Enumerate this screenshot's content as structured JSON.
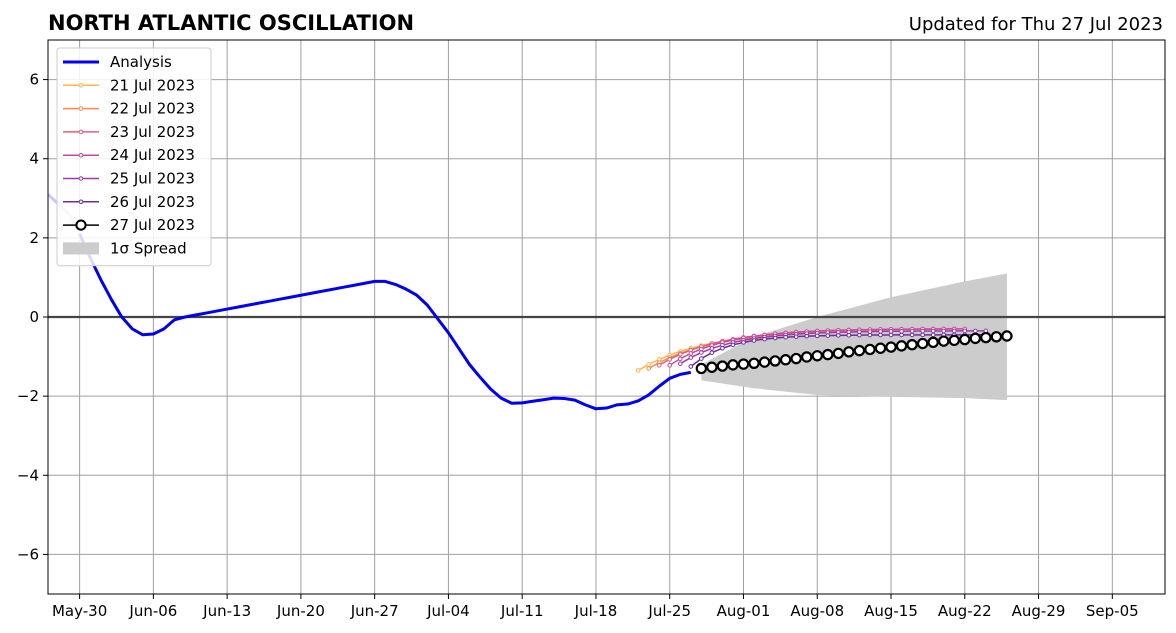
{
  "chart_data": {
    "type": "line",
    "title": "NORTH ATLANTIC OSCILLATION",
    "subtitle": "Updated for Thu 27 Jul 2023",
    "xlabel": "",
    "ylabel": "",
    "xlim": [
      "2023-05-27",
      "2023-09-10"
    ],
    "ylim": [
      -7,
      7
    ],
    "x_ticks": [
      {
        "date": "2023-05-30",
        "label": "May-30"
      },
      {
        "date": "2023-06-06",
        "label": "Jun-06"
      },
      {
        "date": "2023-06-13",
        "label": "Jun-13"
      },
      {
        "date": "2023-06-20",
        "label": "Jun-20"
      },
      {
        "date": "2023-06-27",
        "label": "Jun-27"
      },
      {
        "date": "2023-07-04",
        "label": "Jul-04"
      },
      {
        "date": "2023-07-11",
        "label": "Jul-11"
      },
      {
        "date": "2023-07-18",
        "label": "Jul-18"
      },
      {
        "date": "2023-07-25",
        "label": "Jul-25"
      },
      {
        "date": "2023-08-01",
        "label": "Aug-01"
      },
      {
        "date": "2023-08-08",
        "label": "Aug-08"
      },
      {
        "date": "2023-08-15",
        "label": "Aug-15"
      },
      {
        "date": "2023-08-22",
        "label": "Aug-22"
      },
      {
        "date": "2023-08-29",
        "label": "Aug-29"
      },
      {
        "date": "2023-09-05",
        "label": "Sep-05"
      }
    ],
    "y_ticks": [
      {
        "value": -6,
        "label": "−6"
      },
      {
        "value": -4,
        "label": "−4"
      },
      {
        "value": -2,
        "label": "−2"
      },
      {
        "value": 0,
        "label": "0"
      },
      {
        "value": 2,
        "label": "2"
      },
      {
        "value": 4,
        "label": "4"
      },
      {
        "value": 6,
        "label": "6"
      }
    ],
    "grid": true,
    "legend_position": "top-left",
    "analysis": {
      "name": "Analysis",
      "color": "#0000ee",
      "highlight_color": "#c8c8ff",
      "highlight_until": "2023-05-30",
      "x": [
        "2023-05-28",
        "2023-05-29",
        "2023-05-30",
        "2023-05-31",
        "2023-06-01",
        "2023-06-02",
        "2023-06-03",
        "2023-06-04",
        "2023-06-05",
        "2023-06-06",
        "2023-06-07",
        "2023-06-08",
        "2023-06-09",
        "2023-06-10",
        "2023-06-11",
        "2023-06-12",
        "2023-06-13",
        "2023-06-14",
        "2023-06-15",
        "2023-06-16",
        "2023-06-17",
        "2023-06-18",
        "2023-06-19",
        "2023-06-20",
        "2023-06-21",
        "2023-06-22",
        "2023-06-23",
        "2023-06-24",
        "2023-06-25",
        "2023-06-26",
        "2023-06-27",
        "2023-06-28",
        "2023-06-29",
        "2023-06-30",
        "2023-07-01",
        "2023-07-02",
        "2023-07-03",
        "2023-07-04",
        "2023-07-05",
        "2023-07-06",
        "2023-07-07",
        "2023-07-08",
        "2023-07-09",
        "2023-07-10",
        "2023-07-11",
        "2023-07-12",
        "2023-07-13",
        "2023-07-14",
        "2023-07-15",
        "2023-07-16",
        "2023-07-17",
        "2023-07-18",
        "2023-07-19",
        "2023-07-20",
        "2023-07-21",
        "2023-07-22",
        "2023-07-23",
        "2023-07-24",
        "2023-07-25",
        "2023-07-26",
        "2023-07-27"
      ],
      "y": [
        2.85,
        2.6,
        2.1,
        1.5,
        0.95,
        0.45,
        0.0,
        -0.3,
        -0.45,
        -0.43,
        -0.3,
        -0.07,
        0.0,
        0.05,
        0.1,
        0.15,
        0.2,
        0.25,
        0.3,
        0.35,
        0.4,
        0.45,
        0.5,
        0.55,
        0.6,
        0.65,
        0.7,
        0.75,
        0.8,
        0.85,
        0.9,
        0.9,
        0.82,
        0.7,
        0.55,
        0.3,
        -0.05,
        -0.4,
        -0.8,
        -1.2,
        -1.52,
        -1.82,
        -2.05,
        -2.18,
        -2.17,
        -2.13,
        -2.09,
        -2.05,
        -2.06,
        -2.1,
        -2.22,
        -2.32,
        -2.3,
        -2.22,
        -2.2,
        -2.12,
        -1.97,
        -1.75,
        -1.55,
        -1.45,
        -1.4
      ]
    },
    "forecasts": [
      {
        "name": "21 Jul 2023",
        "color": "#ffb74d",
        "start": "2023-07-22",
        "start_value": -1.35,
        "end": "2023-08-16",
        "end_value": -0.35,
        "shape": 4.0
      },
      {
        "name": "22 Jul 2023",
        "color": "#f98c50",
        "start": "2023-07-23",
        "start_value": -1.3,
        "end": "2023-08-17",
        "end_value": -0.35,
        "shape": 4.2
      },
      {
        "name": "23 Jul 2023",
        "color": "#e0607a",
        "start": "2023-07-24",
        "start_value": -1.22,
        "end": "2023-08-21",
        "end_value": -0.3,
        "shape": 5.0
      },
      {
        "name": "24 Jul 2023",
        "color": "#c74b98",
        "start": "2023-07-25",
        "start_value": -1.22,
        "end": "2023-08-22",
        "end_value": -0.3,
        "shape": 5.5
      },
      {
        "name": "25 Jul 2023",
        "color": "#a03aa5",
        "start": "2023-07-26",
        "start_value": -1.18,
        "end": "2023-08-24",
        "end_value": -0.35,
        "shape": 6.0
      },
      {
        "name": "26 Jul 2023",
        "color": "#6a2da0",
        "start": "2023-07-27",
        "start_value": -1.25,
        "end": "2023-08-24",
        "end_value": -0.45,
        "shape": 8.0
      }
    ],
    "latest": {
      "name": "27 Jul 2023",
      "color": "#000000",
      "x": [
        "2023-07-28",
        "2023-07-29",
        "2023-07-30",
        "2023-07-31",
        "2023-08-01",
        "2023-08-02",
        "2023-08-03",
        "2023-08-04",
        "2023-08-05",
        "2023-08-06",
        "2023-08-07",
        "2023-08-08",
        "2023-08-09",
        "2023-08-10",
        "2023-08-11",
        "2023-08-12",
        "2023-08-13",
        "2023-08-14",
        "2023-08-15",
        "2023-08-16",
        "2023-08-17",
        "2023-08-18",
        "2023-08-19",
        "2023-08-20",
        "2023-08-21",
        "2023-08-22",
        "2023-08-23",
        "2023-08-24",
        "2023-08-25",
        "2023-08-26"
      ],
      "y": [
        -1.3,
        -1.27,
        -1.24,
        -1.21,
        -1.19,
        -1.17,
        -1.14,
        -1.11,
        -1.08,
        -1.05,
        -1.01,
        -0.98,
        -0.95,
        -0.92,
        -0.88,
        -0.85,
        -0.82,
        -0.79,
        -0.76,
        -0.73,
        -0.7,
        -0.67,
        -0.64,
        -0.61,
        -0.59,
        -0.57,
        -0.54,
        -0.52,
        -0.5,
        -0.48
      ]
    },
    "spread": {
      "name": "1σ Spread",
      "color": "#cccccc",
      "x": [
        "2023-07-28",
        "2023-08-02",
        "2023-08-08",
        "2023-08-15",
        "2023-08-22",
        "2023-08-26"
      ],
      "upper": [
        -1.2,
        -0.5,
        0.0,
        0.5,
        0.9,
        1.1
      ],
      "lower": [
        -1.6,
        -1.8,
        -1.97,
        -2.02,
        -2.05,
        -2.1
      ]
    }
  }
}
